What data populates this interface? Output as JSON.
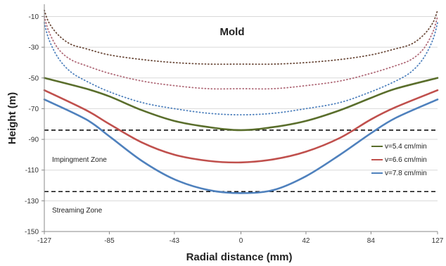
{
  "chart_data": {
    "type": "line",
    "annotation_title": "Mold",
    "xlabel": "Radial distance (mm)",
    "ylabel": "Height (m)",
    "xlim": [
      -127,
      127
    ],
    "ylim": [
      -150,
      -2
    ],
    "x_ticks": [
      "-127",
      "-85",
      "-43",
      "0",
      "42",
      "84",
      "127"
    ],
    "x_tick_values": [
      -127,
      -85,
      -43,
      0,
      42,
      84,
      127
    ],
    "y_ticks": [
      "-10",
      "-30",
      "-50",
      "-70",
      "-90",
      "-110",
      "-130",
      "-150"
    ],
    "y_tick_values": [
      -10,
      -30,
      -50,
      -70,
      -90,
      -110,
      -130,
      -150
    ],
    "grid": "horizontal",
    "legend_position": "right",
    "zone_lines": [
      -84,
      -124
    ],
    "zones": [
      {
        "label": "Impingment Zone",
        "y": -104
      },
      {
        "label": "Streaming Zone",
        "y": -137
      }
    ],
    "series": [
      {
        "name": "v=5.4 cm/min",
        "color": "#5a6e2c",
        "style": "solid",
        "in_legend": true,
        "x": [
          -127,
          -100,
          -85,
          -64,
          -43,
          -21,
          0,
          21,
          42,
          64,
          84,
          100,
          127
        ],
        "y": [
          -50,
          -57,
          -62,
          -71,
          -78,
          -82,
          -84,
          -82,
          -78,
          -71,
          -63,
          -57,
          -50
        ]
      },
      {
        "name": "v=6.6 cm/min",
        "color": "#c0504d",
        "style": "solid",
        "in_legend": true,
        "x": [
          -127,
          -100,
          -85,
          -64,
          -43,
          -21,
          0,
          21,
          42,
          64,
          84,
          100,
          127
        ],
        "y": [
          -58,
          -71,
          -80,
          -92,
          -100,
          -104,
          -105,
          -103,
          -98,
          -89,
          -77,
          -69,
          -58
        ]
      },
      {
        "name": "v=7.8 cm/min",
        "color": "#4f81bd",
        "style": "solid",
        "in_legend": true,
        "x": [
          -127,
          -100,
          -85,
          -64,
          -43,
          -21,
          0,
          21,
          42,
          64,
          84,
          100,
          127
        ],
        "y": [
          -64,
          -77,
          -88,
          -104,
          -116,
          -123,
          -125,
          -123,
          -114,
          -100,
          -86,
          -76,
          -64
        ]
      },
      {
        "name": "",
        "color": "#6b4a3a",
        "style": "dotted",
        "in_legend": false,
        "x": [
          -127,
          -124,
          -118,
          -110,
          -100,
          -85,
          -64,
          -43,
          -21,
          0,
          21,
          42,
          64,
          84,
          100,
          110,
          118,
          124,
          127
        ],
        "y": [
          -6,
          -14,
          -22,
          -28,
          -31,
          -35,
          -38,
          -40,
          -41,
          -41,
          -41,
          -40,
          -38,
          -35,
          -31,
          -28,
          -22,
          -14,
          -6
        ]
      },
      {
        "name": "",
        "color": "#b06a78",
        "style": "dotted",
        "in_legend": false,
        "x": [
          -127,
          -124,
          -118,
          -110,
          -100,
          -85,
          -64,
          -43,
          -21,
          0,
          21,
          42,
          64,
          84,
          100,
          110,
          118,
          124,
          127
        ],
        "y": [
          -10,
          -20,
          -31,
          -38,
          -42,
          -47,
          -52,
          -55,
          -57,
          -57,
          -57,
          -55,
          -52,
          -47,
          -42,
          -38,
          -31,
          -20,
          -10
        ]
      },
      {
        "name": "",
        "color": "#4f81bd",
        "style": "dotted",
        "in_legend": false,
        "x": [
          -127,
          -124,
          -118,
          -110,
          -100,
          -85,
          -64,
          -43,
          -21,
          0,
          21,
          42,
          64,
          84,
          100,
          110,
          118,
          124,
          127
        ],
        "y": [
          -14,
          -25,
          -37,
          -46,
          -52,
          -59,
          -66,
          -70,
          -73,
          -74,
          -73,
          -70,
          -66,
          -59,
          -52,
          -46,
          -37,
          -25,
          -14
        ]
      }
    ]
  }
}
